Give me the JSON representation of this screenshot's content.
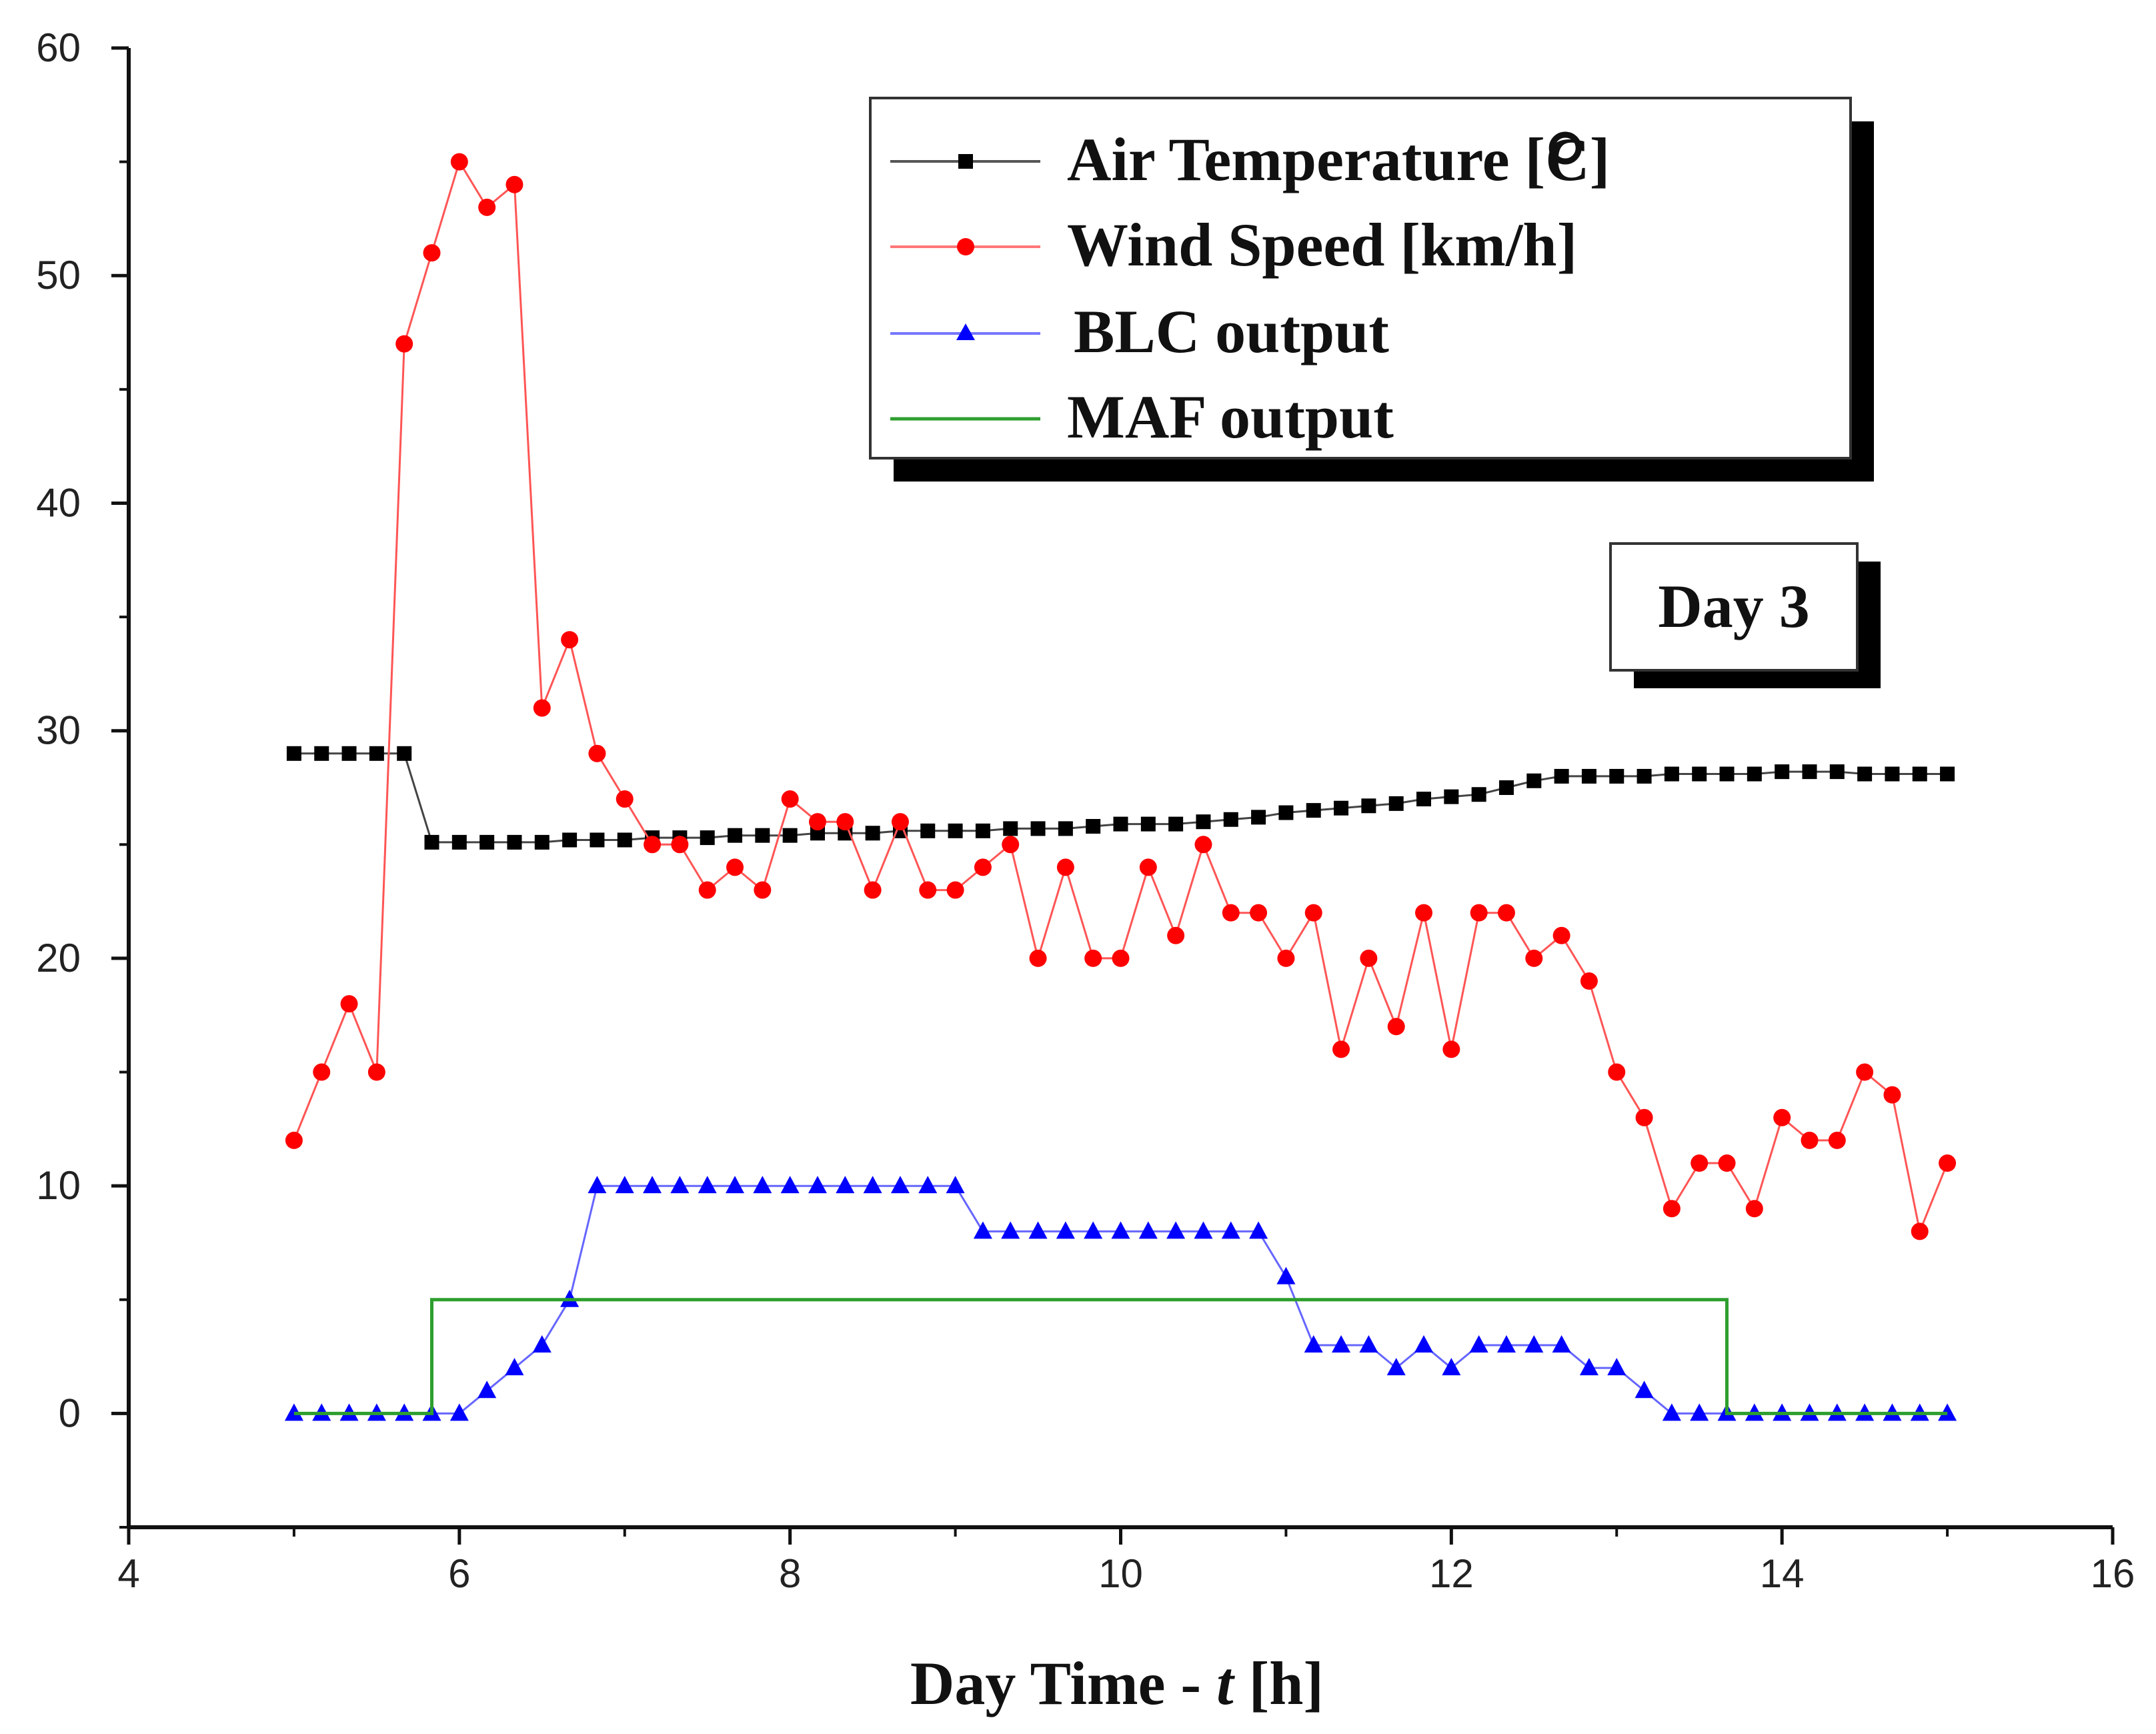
{
  "chart_data": {
    "type": "line",
    "title": "",
    "xlabel": "Day Time - t [h]",
    "xlabel_parts": {
      "main": "Day Time - ",
      "var": "t",
      "unit": " [h]"
    },
    "ylabel": "",
    "xlim": [
      4,
      16
    ],
    "ylim": [
      -5,
      60
    ],
    "xticks": [
      4,
      6,
      8,
      10,
      12,
      14,
      16
    ],
    "yticks": [
      0,
      10,
      20,
      30,
      40,
      50,
      60
    ],
    "legend_position": "top-right",
    "annotation": "Day 3",
    "series": [
      {
        "name": "Air Temperature [°C]",
        "color": "#000000",
        "marker": "square",
        "x": [
          5.0,
          5.1667,
          5.3333,
          5.5,
          5.6667,
          5.8333,
          6.0,
          6.1667,
          6.3333,
          6.5,
          6.6667,
          6.8333,
          7.0,
          7.1667,
          7.3333,
          7.5,
          7.6667,
          7.8333,
          8.0,
          8.1667,
          8.3333,
          8.5,
          8.6667,
          8.8333,
          9.0,
          9.1667,
          9.3333,
          9.5,
          9.6667,
          9.8333,
          10.0,
          10.1667,
          10.3333,
          10.5,
          10.6667,
          10.8333,
          11.0,
          11.1667,
          11.3333,
          11.5,
          11.6667,
          11.8333,
          12.0,
          12.1667,
          12.3333,
          12.5,
          12.6667,
          12.8333,
          13.0,
          13.1667,
          13.3333,
          13.5,
          13.6667,
          13.8333,
          14.0,
          14.1667,
          14.3333,
          14.5,
          14.6667,
          14.8333,
          15.0
        ],
        "values": [
          29,
          29,
          29,
          29,
          29,
          25.1,
          25.1,
          25.1,
          25.1,
          25.1,
          25.2,
          25.2,
          25.2,
          25.3,
          25.3,
          25.3,
          25.4,
          25.4,
          25.4,
          25.5,
          25.5,
          25.5,
          25.6,
          25.6,
          25.6,
          25.6,
          25.7,
          25.7,
          25.7,
          25.8,
          25.9,
          25.9,
          25.9,
          26.0,
          26.1,
          26.2,
          26.4,
          26.5,
          26.6,
          26.7,
          26.8,
          27.0,
          27.1,
          27.2,
          27.5,
          27.8,
          28.0,
          28.0,
          28.0,
          28.0,
          28.1,
          28.1,
          28.1,
          28.1,
          28.2,
          28.2,
          28.2,
          28.1,
          28.1,
          28.1,
          28.1
        ]
      },
      {
        "name": "Wind Speed [km/h]",
        "color": "#ff0000",
        "marker": "circle",
        "x": [
          5.0,
          5.1667,
          5.3333,
          5.5,
          5.6667,
          5.8333,
          6.0,
          6.1667,
          6.3333,
          6.5,
          6.6667,
          6.8333,
          7.0,
          7.1667,
          7.3333,
          7.5,
          7.6667,
          7.8333,
          8.0,
          8.1667,
          8.3333,
          8.5,
          8.6667,
          8.8333,
          9.0,
          9.1667,
          9.3333,
          9.5,
          9.6667,
          9.8333,
          10.0,
          10.1667,
          10.3333,
          10.5,
          10.6667,
          10.8333,
          11.0,
          11.1667,
          11.3333,
          11.5,
          11.6667,
          11.8333,
          12.0,
          12.1667,
          12.3333,
          12.5,
          12.6667,
          12.8333,
          13.0,
          13.1667,
          13.3333,
          13.5,
          13.6667,
          13.8333,
          14.0,
          14.1667,
          14.3333,
          14.5,
          14.6667,
          14.8333,
          15.0
        ],
        "values": [
          12,
          15,
          18,
          15,
          47,
          51,
          55,
          53,
          54,
          31,
          34,
          29,
          27,
          25,
          25,
          23,
          24,
          23,
          27,
          26,
          26,
          23,
          26,
          23,
          23,
          24,
          25,
          20,
          24,
          20,
          20,
          24,
          21,
          25,
          22,
          22,
          20,
          22,
          16,
          20,
          17,
          22,
          16,
          22,
          22,
          20,
          21,
          19,
          15,
          13,
          9,
          11,
          11,
          9,
          13,
          12,
          12,
          15,
          14,
          8,
          11
        ]
      },
      {
        "name": "BLC output",
        "color": "#0000ff",
        "marker": "triangle",
        "x": [
          5.0,
          5.1667,
          5.3333,
          5.5,
          5.6667,
          5.8333,
          6.0,
          6.1667,
          6.3333,
          6.5,
          6.6667,
          6.8333,
          7.0,
          7.1667,
          7.3333,
          7.5,
          7.6667,
          7.8333,
          8.0,
          8.1667,
          8.3333,
          8.5,
          8.6667,
          8.8333,
          9.0,
          9.1667,
          9.3333,
          9.5,
          9.6667,
          9.8333,
          10.0,
          10.1667,
          10.3333,
          10.5,
          10.6667,
          10.8333,
          11.0,
          11.1667,
          11.3333,
          11.5,
          11.6667,
          11.8333,
          12.0,
          12.1667,
          12.3333,
          12.5,
          12.6667,
          12.8333,
          13.0,
          13.1667,
          13.3333,
          13.5,
          13.6667,
          13.8333,
          14.0,
          14.1667,
          14.3333,
          14.5,
          14.6667,
          14.8333,
          15.0
        ],
        "values": [
          0,
          0,
          0,
          0,
          0,
          0,
          0,
          1,
          2,
          3,
          5,
          10,
          10,
          10,
          10,
          10,
          10,
          10,
          10,
          10,
          10,
          10,
          10,
          10,
          10,
          8,
          8,
          8,
          8,
          8,
          8,
          8,
          8,
          8,
          8,
          8,
          6,
          3,
          3,
          3,
          2,
          3,
          2,
          3,
          3,
          3,
          3,
          2,
          2,
          1,
          0,
          0,
          0,
          0,
          0,
          0,
          0,
          0,
          0,
          0,
          0
        ]
      },
      {
        "name": "MAF output",
        "color": "#2e9e2e",
        "marker": "none",
        "x": [
          5.0,
          5.8333,
          5.8333,
          13.6667,
          13.6667,
          15.0
        ],
        "values": [
          0,
          0,
          5,
          5,
          0,
          0
        ]
      }
    ]
  },
  "legend": {
    "air_temp_main": "Air Temperature [",
    "air_temp_end": "C]",
    "wind": "Wind Speed [km/h]",
    "blc": "BLC output",
    "maf": "MAF output"
  }
}
